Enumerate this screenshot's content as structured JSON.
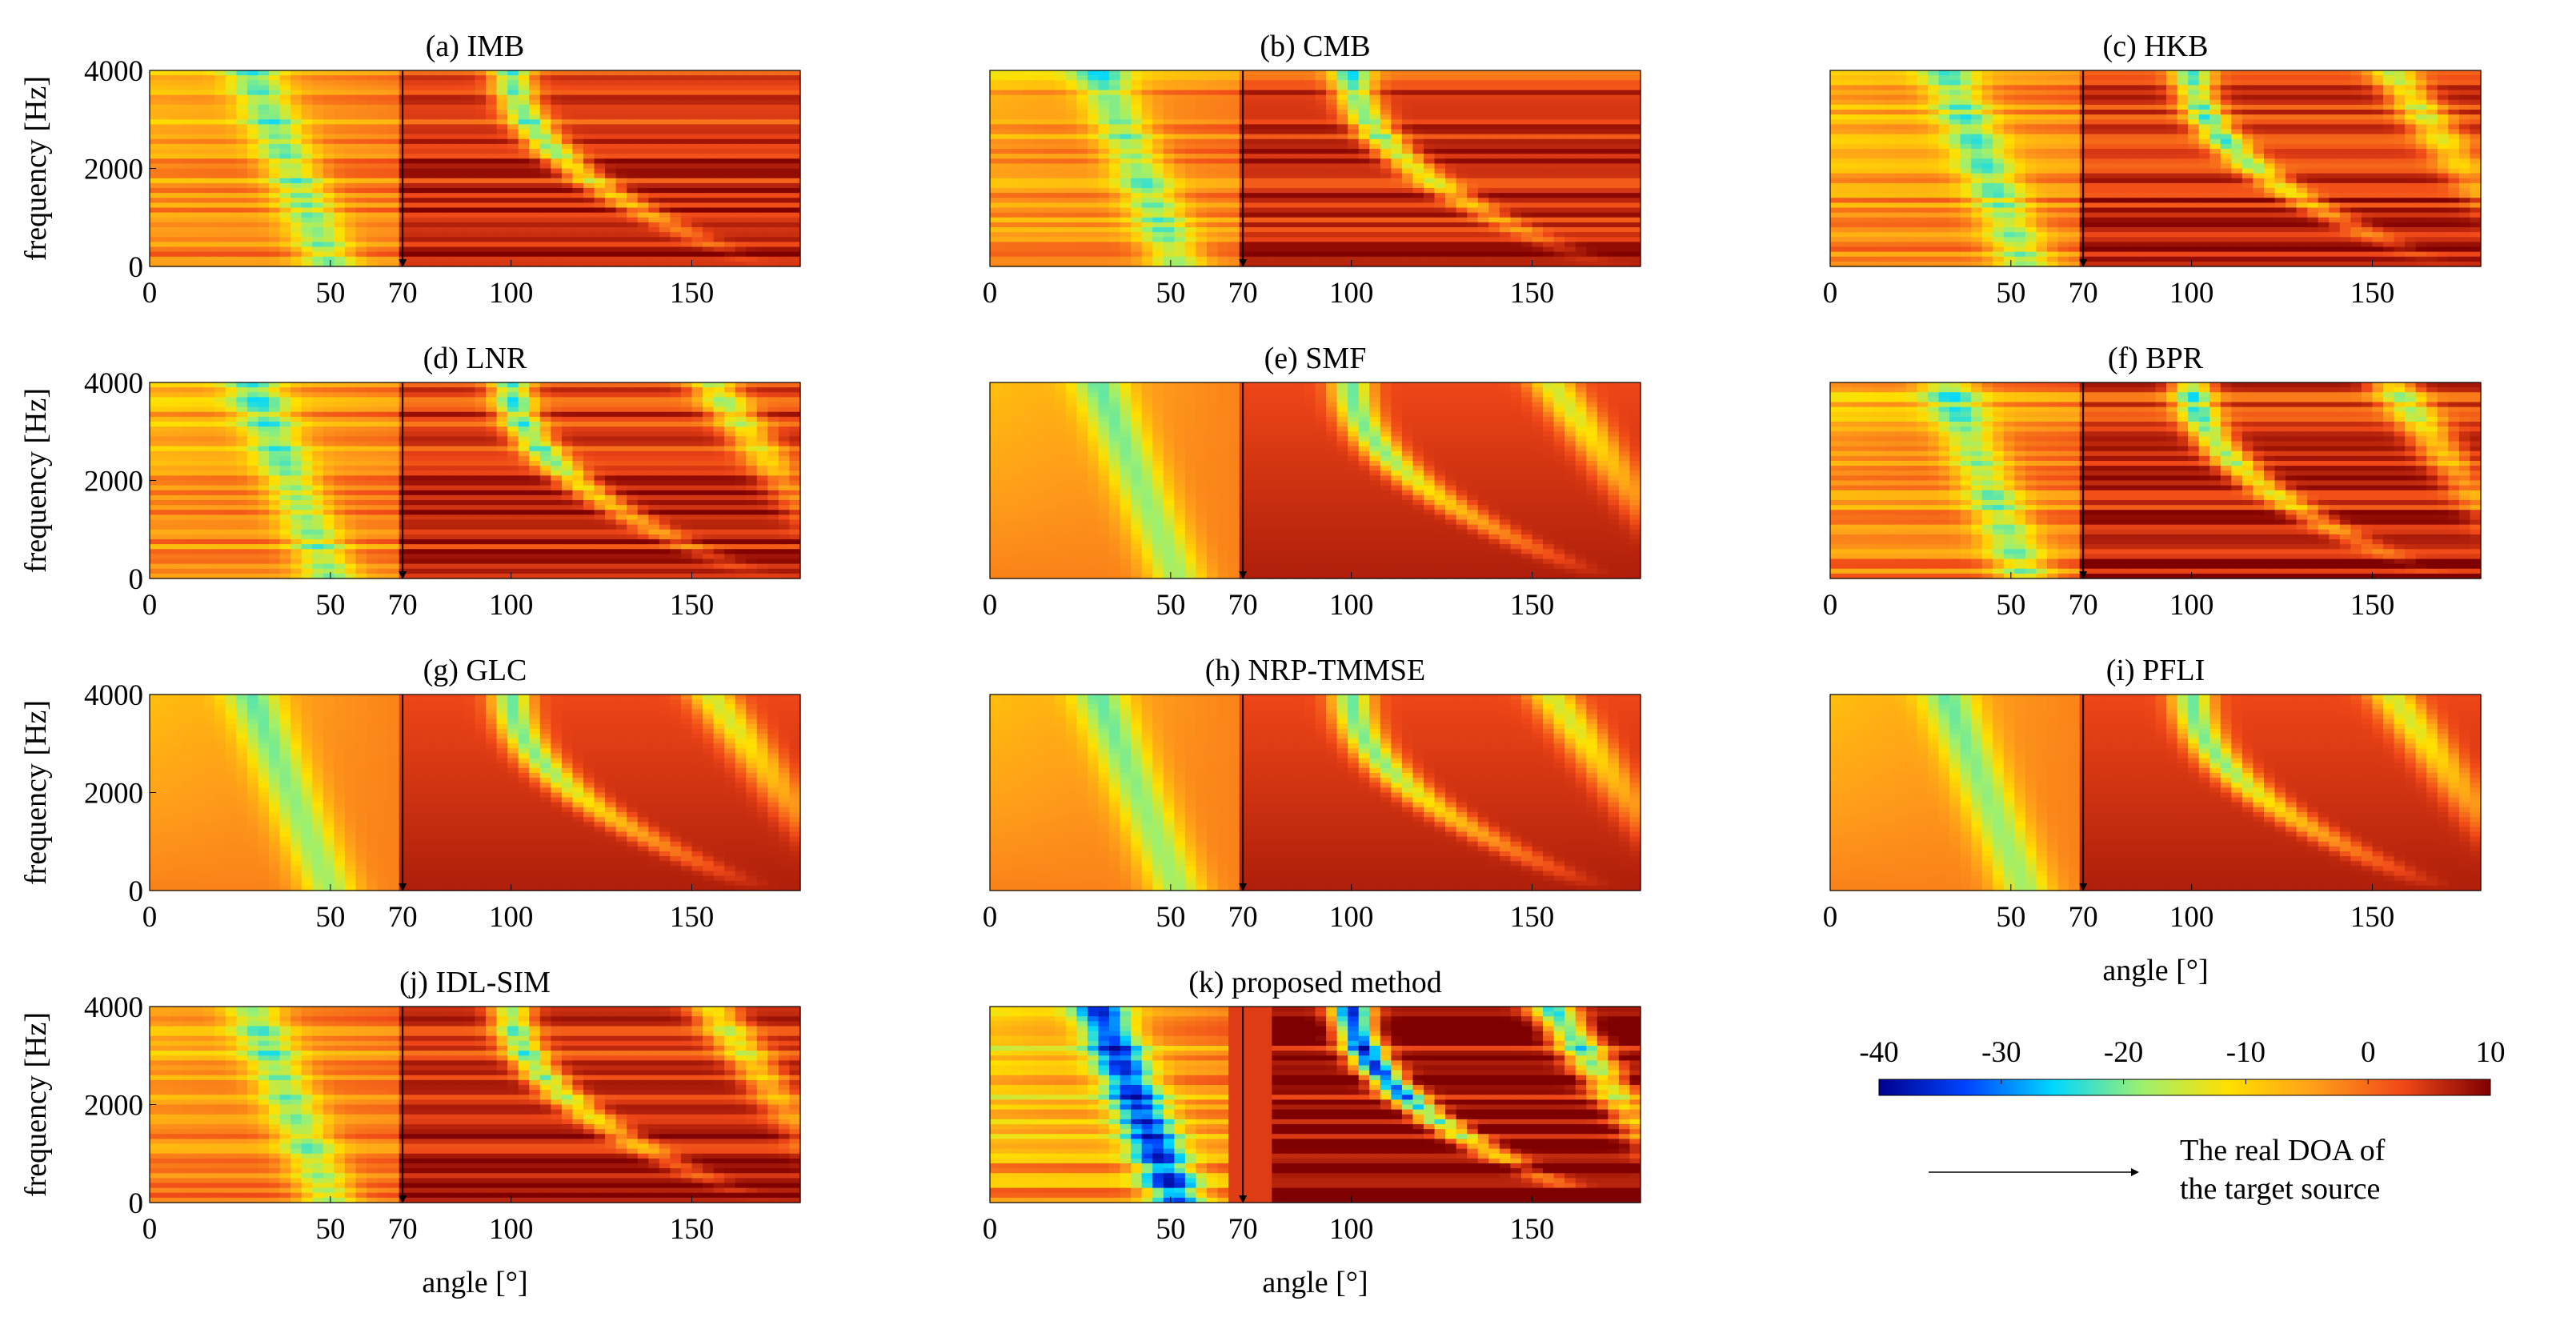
{
  "chart_data": {
    "type": "heatmap",
    "description_units": "beampattern magnitude vs angle and frequency",
    "x_range": [
      0,
      180
    ],
    "y_range": [
      0,
      4000
    ],
    "x_ticks": [
      "0",
      "50",
      "70",
      "100",
      "150"
    ],
    "x_tick_values": [
      0,
      50,
      70,
      100,
      150
    ],
    "y_ticks": [
      "0",
      "2000",
      "4000"
    ],
    "y_tick_values": [
      0,
      2000,
      4000
    ],
    "ylabel": "frequency [Hz]",
    "xlabel": "angle [°]",
    "target_doa": 70,
    "colorbar": {
      "min": -40,
      "max": 10,
      "ticks": [
        "-40",
        "-30",
        "-20",
        "-10",
        "0",
        "10"
      ],
      "tick_values": [
        -40,
        -30,
        -20,
        -10,
        0,
        10
      ],
      "colors": [
        "#00008f",
        "#0044ff",
        "#00d8ff",
        "#9cf070",
        "#ffe000",
        "#ff9d1a",
        "#f04818",
        "#7f0000"
      ]
    },
    "legend_text_line1": "The real DOA of",
    "legend_text_line2": "the target source",
    "panels": [
      {
        "title": "(a) IMB",
        "style": "noisy",
        "nulls": 1
      },
      {
        "title": "(b) CMB",
        "style": "noisy",
        "nulls": 1
      },
      {
        "title": "(c) HKB",
        "style": "noisy",
        "nulls": 2
      },
      {
        "title": "(d) LNR",
        "style": "noisy",
        "nulls": 2
      },
      {
        "title": "(e) SMF",
        "style": "smooth",
        "nulls": 2
      },
      {
        "title": "(f) BPR",
        "style": "noisy",
        "nulls": 2
      },
      {
        "title": "(g) GLC",
        "style": "smooth",
        "nulls": 2
      },
      {
        "title": "(h) NRP-TMMSE",
        "style": "smooth",
        "nulls": 2
      },
      {
        "title": "(i) PFLI",
        "style": "smooth",
        "nulls": 2
      },
      {
        "title": "(j) IDL-SIM",
        "style": "noisy",
        "nulls": 2
      },
      {
        "title": "(k) proposed method",
        "style": "deep",
        "nulls": 2
      }
    ]
  }
}
